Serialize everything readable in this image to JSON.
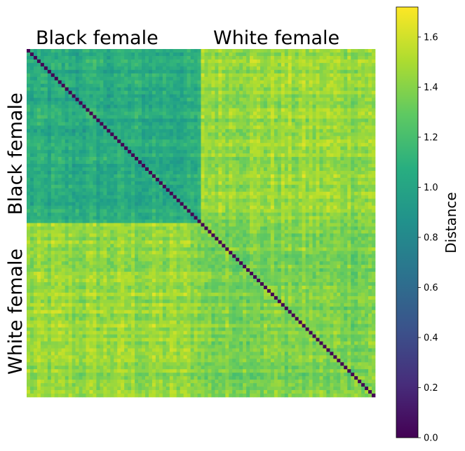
{
  "chart_data": {
    "type": "heatmap",
    "title": "",
    "n_per_group": 50,
    "row_groups": [
      "Black female",
      "White female"
    ],
    "col_groups": [
      "Black female",
      "White female"
    ],
    "block_mean_distance": [
      [
        1.05,
        1.45
      ],
      [
        1.45,
        1.38
      ]
    ],
    "diagonal_distance": 0.0,
    "colorbar": {
      "label": "Distance",
      "range": [
        0,
        1.72
      ],
      "ticks": [
        "0.0",
        "0.2",
        "0.4",
        "0.6",
        "0.8",
        "1.0",
        "1.2",
        "1.4",
        "1.6"
      ],
      "colormap": "viridis"
    },
    "grid": false
  }
}
